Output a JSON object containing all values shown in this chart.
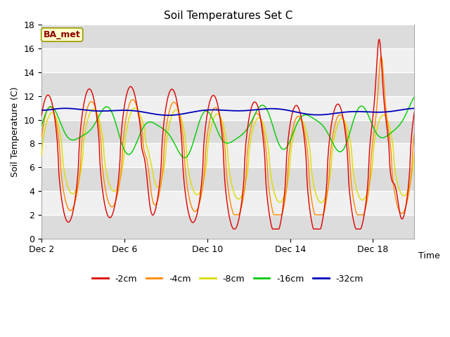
{
  "title": "Soil Temperatures Set C",
  "xlabel": "Time",
  "ylabel": "Soil Temperature (C)",
  "ylim": [
    0,
    18
  ],
  "annotation": "BA_met",
  "background_color": "#ffffff",
  "plot_bg_light": "#f0f0f0",
  "plot_bg_dark": "#dcdcdc",
  "grid_color": "#ffffff",
  "depth_colors": [
    "#dd0000",
    "#ff8800",
    "#dddd00",
    "#00cc00",
    "#0000bb"
  ],
  "depth_labels": [
    "-2cm",
    "-4cm",
    "-8cm",
    "-16cm",
    "-32cm"
  ],
  "tick_positions": [
    0,
    4,
    8,
    12,
    16
  ],
  "tick_labels": [
    "Dec 2",
    "Dec 6",
    "Dec 10",
    "Dec 14",
    "Dec 18"
  ],
  "yticks": [
    0,
    2,
    4,
    6,
    8,
    10,
    12,
    14,
    16,
    18
  ]
}
